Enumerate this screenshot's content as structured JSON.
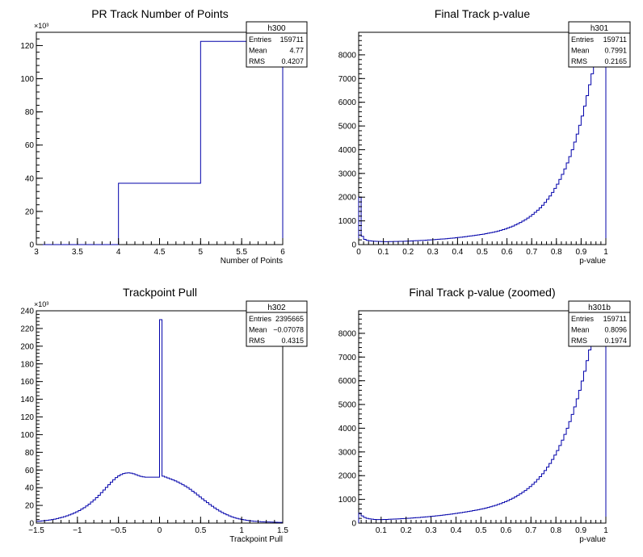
{
  "colors": {
    "histogram_line": "#0000aa",
    "axis": "#000000",
    "background": "#ffffff"
  },
  "chart_data": [
    {
      "type": "histogram",
      "title": "PR Track Number of Points",
      "xlabel": "Number of Points",
      "ylabel": "",
      "xlim": [
        3,
        6
      ],
      "ylim": [
        0,
        128000
      ],
      "y_multiplier_label": "×10³",
      "x_ticks": [
        3,
        3.5,
        4,
        4.5,
        5,
        5.5,
        6
      ],
      "x_tick_labels": [
        "3",
        "3.5",
        "4",
        "4.5",
        "5",
        "5.5",
        "6"
      ],
      "y_ticks": [
        0,
        20000,
        40000,
        60000,
        80000,
        100000,
        120000
      ],
      "y_tick_labels": [
        "0",
        "20",
        "40",
        "60",
        "80",
        "100",
        "120"
      ],
      "bins": [
        {
          "lo": 3,
          "hi": 4,
          "value": 0
        },
        {
          "lo": 4,
          "hi": 5,
          "value": 37000
        },
        {
          "lo": 5,
          "hi": 6,
          "value": 122500
        }
      ],
      "stats": {
        "name": "h300",
        "rows": [
          [
            "Entries",
            "159711"
          ],
          [
            "Mean",
            "4.77"
          ],
          [
            "RMS",
            "0.4207"
          ]
        ]
      }
    },
    {
      "type": "histogram",
      "title": "Final Track p-value",
      "xlabel": "p-value",
      "ylabel": "",
      "xlim": [
        0,
        1
      ],
      "ylim": [
        0,
        8950
      ],
      "y_multiplier_label": "",
      "x_ticks": [
        0,
        0.1,
        0.2,
        0.3,
        0.4,
        0.5,
        0.6,
        0.7,
        0.8,
        0.9,
        1
      ],
      "x_tick_labels": [
        "0",
        "0.1",
        "0.2",
        "0.3",
        "0.4",
        "0.5",
        "0.6",
        "0.7",
        "0.8",
        "0.9",
        "1"
      ],
      "y_ticks": [
        0,
        1000,
        2000,
        3000,
        4000,
        5000,
        6000,
        7000,
        8000
      ],
      "y_tick_labels": [
        "0",
        "1000",
        "2000",
        "3000",
        "4000",
        "5000",
        "6000",
        "7000",
        "8000"
      ],
      "bin_start": 0,
      "bin_width": 0.01,
      "values": [
        2000,
        350,
        220,
        180,
        160,
        150,
        140,
        135,
        130,
        128,
        125,
        125,
        126,
        128,
        130,
        132,
        135,
        138,
        142,
        145,
        150,
        155,
        160,
        165,
        170,
        175,
        180,
        188,
        195,
        202,
        210,
        218,
        225,
        232,
        240,
        248,
        258,
        268,
        278,
        288,
        300,
        312,
        325,
        338,
        352,
        366,
        380,
        395,
        410,
        425,
        440,
        460,
        480,
        500,
        520,
        545,
        570,
        600,
        630,
        660,
        700,
        740,
        780,
        830,
        880,
        930,
        990,
        1050,
        1120,
        1190,
        1270,
        1360,
        1450,
        1550,
        1660,
        1780,
        1910,
        2050,
        2200,
        2370,
        2550,
        2750,
        2960,
        3190,
        3440,
        3710,
        4000,
        4320,
        4660,
        5030,
        5420,
        5840,
        6280,
        6740,
        7200,
        7600,
        8200,
        8900,
        8900,
        8900
      ],
      "stats": {
        "name": "h301",
        "rows": [
          [
            "Entries",
            "159711"
          ],
          [
            "Mean",
            "0.7991"
          ],
          [
            "RMS",
            "0.2165"
          ]
        ]
      }
    },
    {
      "type": "histogram",
      "title": "Trackpoint Pull",
      "xlabel": "Trackpoint Pull",
      "ylabel": "",
      "xlim": [
        -1.5,
        1.5
      ],
      "ylim": [
        0,
        240000
      ],
      "y_multiplier_label": "×10³",
      "x_ticks": [
        -1.5,
        -1,
        -0.5,
        0,
        0.5,
        1,
        1.5
      ],
      "x_tick_labels": [
        "−1.5",
        "−1",
        "−0.5",
        "0",
        "0.5",
        "1",
        "1.5"
      ],
      "y_ticks": [
        0,
        20000,
        40000,
        60000,
        80000,
        100000,
        120000,
        140000,
        160000,
        180000,
        200000,
        220000,
        240000
      ],
      "y_tick_labels": [
        "0",
        "20",
        "40",
        "60",
        "80",
        "100",
        "120",
        "140",
        "160",
        "180",
        "200",
        "220",
        "240"
      ],
      "bin_start": -1.5,
      "bin_width": 0.03,
      "values": [
        2000,
        2200,
        2500,
        2800,
        3100,
        3500,
        4000,
        4500,
        5100,
        5800,
        6500,
        7300,
        8200,
        9200,
        10300,
        11500,
        12800,
        14200,
        15800,
        17500,
        19400,
        21500,
        23800,
        26200,
        28800,
        31500,
        34400,
        37400,
        40400,
        43400,
        46300,
        49000,
        51400,
        53400,
        54900,
        56000,
        56600,
        56800,
        56500,
        55800,
        54800,
        53700,
        52800,
        52200,
        51900,
        51900,
        51900,
        51900,
        51900,
        51900,
        230000,
        53000,
        52000,
        51000,
        50000,
        48900,
        47700,
        46400,
        45000,
        43500,
        41900,
        40100,
        38200,
        36100,
        34000,
        31800,
        29600,
        27400,
        25200,
        23100,
        21000,
        19000,
        17100,
        15300,
        13600,
        12000,
        10600,
        9300,
        8100,
        7100,
        6200,
        5400,
        4700,
        4100,
        3600,
        3100,
        2700,
        2400,
        2100,
        1900,
        1700,
        1500,
        1400,
        1300,
        1200,
        1100,
        1000,
        900,
        800,
        800
      ],
      "stats": {
        "name": "h302",
        "rows": [
          [
            "Entries",
            "2395665"
          ],
          [
            "Mean",
            "−0.07078"
          ],
          [
            "RMS",
            "0.4315"
          ]
        ]
      }
    },
    {
      "type": "histogram",
      "title": "Final Track p-value (zoomed)",
      "xlabel": "p-value",
      "ylabel": "",
      "xlim": [
        0.01,
        1
      ],
      "ylim": [
        0,
        8950
      ],
      "y_multiplier_label": "",
      "x_ticks": [
        0.1,
        0.2,
        0.3,
        0.4,
        0.5,
        0.6,
        0.7,
        0.8,
        0.9,
        1
      ],
      "x_tick_labels": [
        "0.1",
        "0.2",
        "0.3",
        "0.4",
        "0.5",
        "0.6",
        "0.7",
        "0.8",
        "0.9",
        "1"
      ],
      "y_ticks": [
        0,
        1000,
        2000,
        3000,
        4000,
        5000,
        6000,
        7000,
        8000
      ],
      "y_tick_labels": [
        "0",
        "1000",
        "2000",
        "3000",
        "4000",
        "5000",
        "6000",
        "7000",
        "8000"
      ],
      "bin_start": 0.01,
      "bin_width": 0.0099,
      "values": [
        420,
        300,
        240,
        200,
        180,
        165,
        155,
        150,
        148,
        150,
        152,
        155,
        160,
        165,
        170,
        175,
        180,
        186,
        192,
        198,
        205,
        212,
        220,
        228,
        236,
        245,
        254,
        263,
        273,
        283,
        294,
        305,
        316,
        328,
        340,
        353,
        366,
        380,
        394,
        409,
        424,
        440,
        456,
        473,
        490,
        508,
        526,
        546,
        566,
        588,
        610,
        634,
        660,
        688,
        718,
        750,
        785,
        822,
        862,
        905,
        950,
        1000,
        1052,
        1108,
        1168,
        1232,
        1300,
        1375,
        1455,
        1540,
        1632,
        1730,
        1840,
        1955,
        2080,
        2215,
        2360,
        2515,
        2685,
        2865,
        3060,
        3270,
        3495,
        3740,
        4000,
        4280,
        4580,
        4900,
        5240,
        5600,
        5990,
        6400,
        6850,
        7300,
        7850,
        8400,
        8950,
        8950,
        8950,
        8950
      ],
      "stats": {
        "name": "h301b",
        "rows": [
          [
            "Entries",
            "159711"
          ],
          [
            "Mean",
            "0.8096"
          ],
          [
            "RMS",
            "0.1974"
          ]
        ]
      }
    }
  ]
}
